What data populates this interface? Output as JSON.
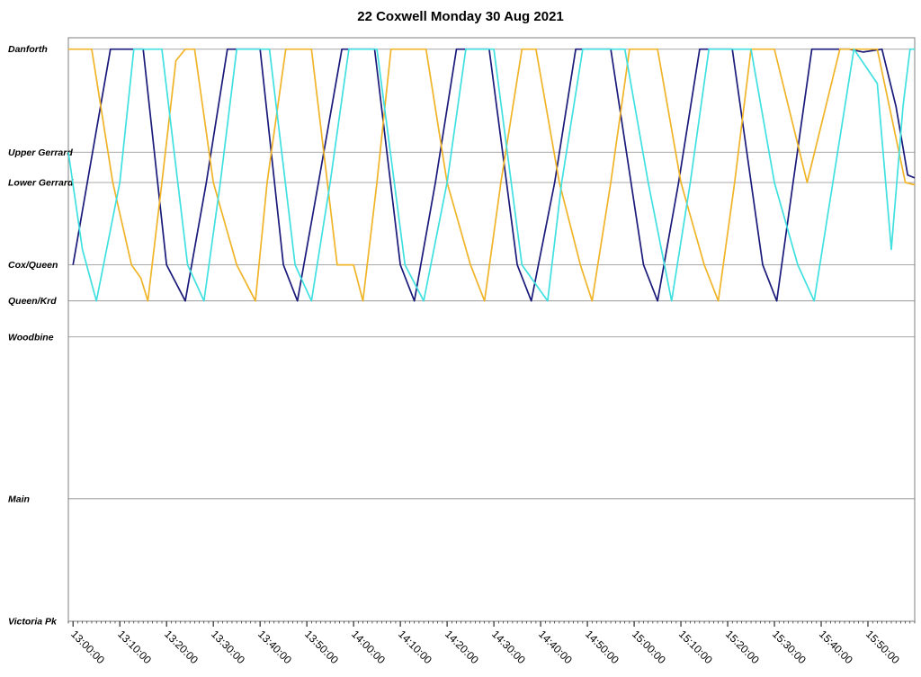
{
  "chart_data": {
    "type": "line",
    "title": "22 Coxwell Monday 30 Aug 2021",
    "xlabel": "",
    "ylabel": "",
    "x_range": [
      "12:59:00",
      "16:00:00"
    ],
    "x_ticks": [
      "13:00:00",
      "13:10:00",
      "13:20:00",
      "13:30:00",
      "13:40:00",
      "13:50:00",
      "14:00:00",
      "14:10:00",
      "14:20:00",
      "14:30:00",
      "14:40:00",
      "14:50:00",
      "15:00:00",
      "15:10:00",
      "15:20:00",
      "15:30:00",
      "15:40:00",
      "15:50:00"
    ],
    "y_stops": [
      {
        "label": "Danforth",
        "value": 100
      },
      {
        "label": "Upper Gerrard",
        "value": 82
      },
      {
        "label": "Lower Gerrard",
        "value": 76.7
      },
      {
        "label": "Cox/Queen",
        "value": 62.3
      },
      {
        "label": "Queen/Krd",
        "value": 56
      },
      {
        "label": "Woodbine",
        "value": 49.7
      },
      {
        "label": "Main",
        "value": 21.4
      },
      {
        "label": "Victoria Pk",
        "value": 0
      }
    ],
    "ylim": [
      0,
      102
    ],
    "grid": true,
    "legend": "none",
    "series": [
      {
        "color": "#1a1a7a",
        "points": [
          [
            "13:00:00",
            62.3
          ],
          [
            "13:08:00",
            100
          ],
          [
            "13:15:00",
            100
          ],
          [
            "13:20:00",
            62.3
          ],
          [
            "13:24:00",
            56
          ],
          [
            "13:28:30",
            76.7
          ],
          [
            "13:33:00",
            100
          ],
          [
            "13:40:00",
            100
          ],
          [
            "13:45:00",
            62.3
          ],
          [
            "13:48:00",
            56
          ],
          [
            "13:52:30",
            76.7
          ],
          [
            "13:57:30",
            100
          ],
          [
            "14:04:30",
            100
          ],
          [
            "14:10:00",
            62.3
          ],
          [
            "14:13:00",
            56
          ],
          [
            "14:17:30",
            76.7
          ],
          [
            "14:22:00",
            100
          ],
          [
            "14:29:00",
            100
          ],
          [
            "14:35:00",
            62.3
          ],
          [
            "14:38:00",
            56
          ],
          [
            "14:43:00",
            76.7
          ],
          [
            "14:47:30",
            100
          ],
          [
            "14:55:00",
            100
          ],
          [
            "15:02:00",
            62.3
          ],
          [
            "15:05:00",
            56
          ],
          [
            "15:09:30",
            76.7
          ],
          [
            "15:14:00",
            100
          ],
          [
            "15:21:00",
            100
          ],
          [
            "15:27:30",
            62.3
          ],
          [
            "15:30:30",
            56
          ],
          [
            "15:34:00",
            76.7
          ],
          [
            "15:38:00",
            100
          ],
          [
            "15:46:00",
            100
          ],
          [
            "15:49:00",
            99.5
          ],
          [
            "15:53:00",
            100
          ],
          [
            "15:56:00",
            90
          ],
          [
            "15:58:30",
            78
          ],
          [
            "16:00:00",
            77.5
          ]
        ]
      },
      {
        "color": "#f0b428",
        "points": [
          [
            "12:59:00",
            100
          ],
          [
            "13:04:00",
            100
          ],
          [
            "13:08:30",
            76.7
          ],
          [
            "13:12:30",
            62.3
          ],
          [
            "13:14:30",
            60
          ],
          [
            "13:16:00",
            56
          ],
          [
            "13:19:00",
            76.7
          ],
          [
            "13:22:00",
            98
          ],
          [
            "13:24:00",
            100
          ],
          [
            "13:26:00",
            100
          ],
          [
            "13:30:00",
            76.7
          ],
          [
            "13:35:00",
            62.3
          ],
          [
            "13:39:00",
            56
          ],
          [
            "13:41:30",
            76.7
          ],
          [
            "13:45:30",
            100
          ],
          [
            "13:51:00",
            100
          ],
          [
            "13:56:30",
            62.3
          ],
          [
            "14:00:00",
            62.3
          ],
          [
            "14:02:00",
            56
          ],
          [
            "14:05:00",
            76.7
          ],
          [
            "14:08:00",
            100
          ],
          [
            "14:15:30",
            100
          ],
          [
            "14:20:00",
            76.7
          ],
          [
            "14:25:00",
            62.3
          ],
          [
            "14:28:00",
            56
          ],
          [
            "14:31:30",
            76.7
          ],
          [
            "14:36:00",
            100
          ],
          [
            "14:39:00",
            100
          ],
          [
            "14:44:00",
            76.7
          ],
          [
            "14:48:30",
            62.3
          ],
          [
            "14:51:00",
            56
          ],
          [
            "14:55:00",
            76.7
          ],
          [
            "14:59:00",
            100
          ],
          [
            "15:05:00",
            100
          ],
          [
            "15:10:00",
            76.7
          ],
          [
            "15:15:00",
            62.3
          ],
          [
            "15:18:00",
            56
          ],
          [
            "15:21:30",
            76.7
          ],
          [
            "15:25:00",
            100
          ],
          [
            "15:30:00",
            100
          ],
          [
            "15:37:00",
            76.7
          ],
          [
            "15:44:00",
            100
          ],
          [
            "15:52:00",
            100
          ],
          [
            "15:58:00",
            76.7
          ],
          [
            "16:00:00",
            76.3
          ]
        ]
      },
      {
        "color": "#40e0e0",
        "points": [
          [
            "12:59:00",
            82
          ],
          [
            "13:02:00",
            65
          ],
          [
            "13:05:00",
            56
          ],
          [
            "13:10:00",
            76.7
          ],
          [
            "13:13:00",
            100
          ],
          [
            "13:19:00",
            100
          ],
          [
            "13:24:30",
            62.3
          ],
          [
            "13:28:00",
            56
          ],
          [
            "13:31:30",
            76.7
          ],
          [
            "13:35:00",
            100
          ],
          [
            "13:42:00",
            100
          ],
          [
            "13:47:30",
            62.3
          ],
          [
            "13:51:00",
            56
          ],
          [
            "13:55:00",
            76.7
          ],
          [
            "13:59:00",
            100
          ],
          [
            "14:05:00",
            100
          ],
          [
            "14:11:00",
            62.3
          ],
          [
            "14:15:00",
            56
          ],
          [
            "14:20:00",
            76.7
          ],
          [
            "14:24:00",
            100
          ],
          [
            "14:30:00",
            100
          ],
          [
            "14:36:00",
            62.3
          ],
          [
            "14:41:30",
            56
          ],
          [
            "14:44:30",
            76.7
          ],
          [
            "14:49:00",
            100
          ],
          [
            "14:58:00",
            100
          ],
          [
            "15:03:00",
            76.7
          ],
          [
            "15:08:00",
            56
          ],
          [
            "15:12:00",
            76.7
          ],
          [
            "15:16:00",
            100
          ],
          [
            "15:25:00",
            100
          ],
          [
            "15:30:00",
            76.7
          ],
          [
            "15:35:00",
            62.3
          ],
          [
            "15:38:30",
            56
          ],
          [
            "15:42:30",
            76.7
          ],
          [
            "15:47:00",
            100
          ],
          [
            "15:52:00",
            94
          ],
          [
            "15:55:00",
            65
          ],
          [
            "15:57:30",
            90
          ],
          [
            "15:59:00",
            100
          ],
          [
            "16:00:00",
            100
          ]
        ]
      }
    ]
  }
}
